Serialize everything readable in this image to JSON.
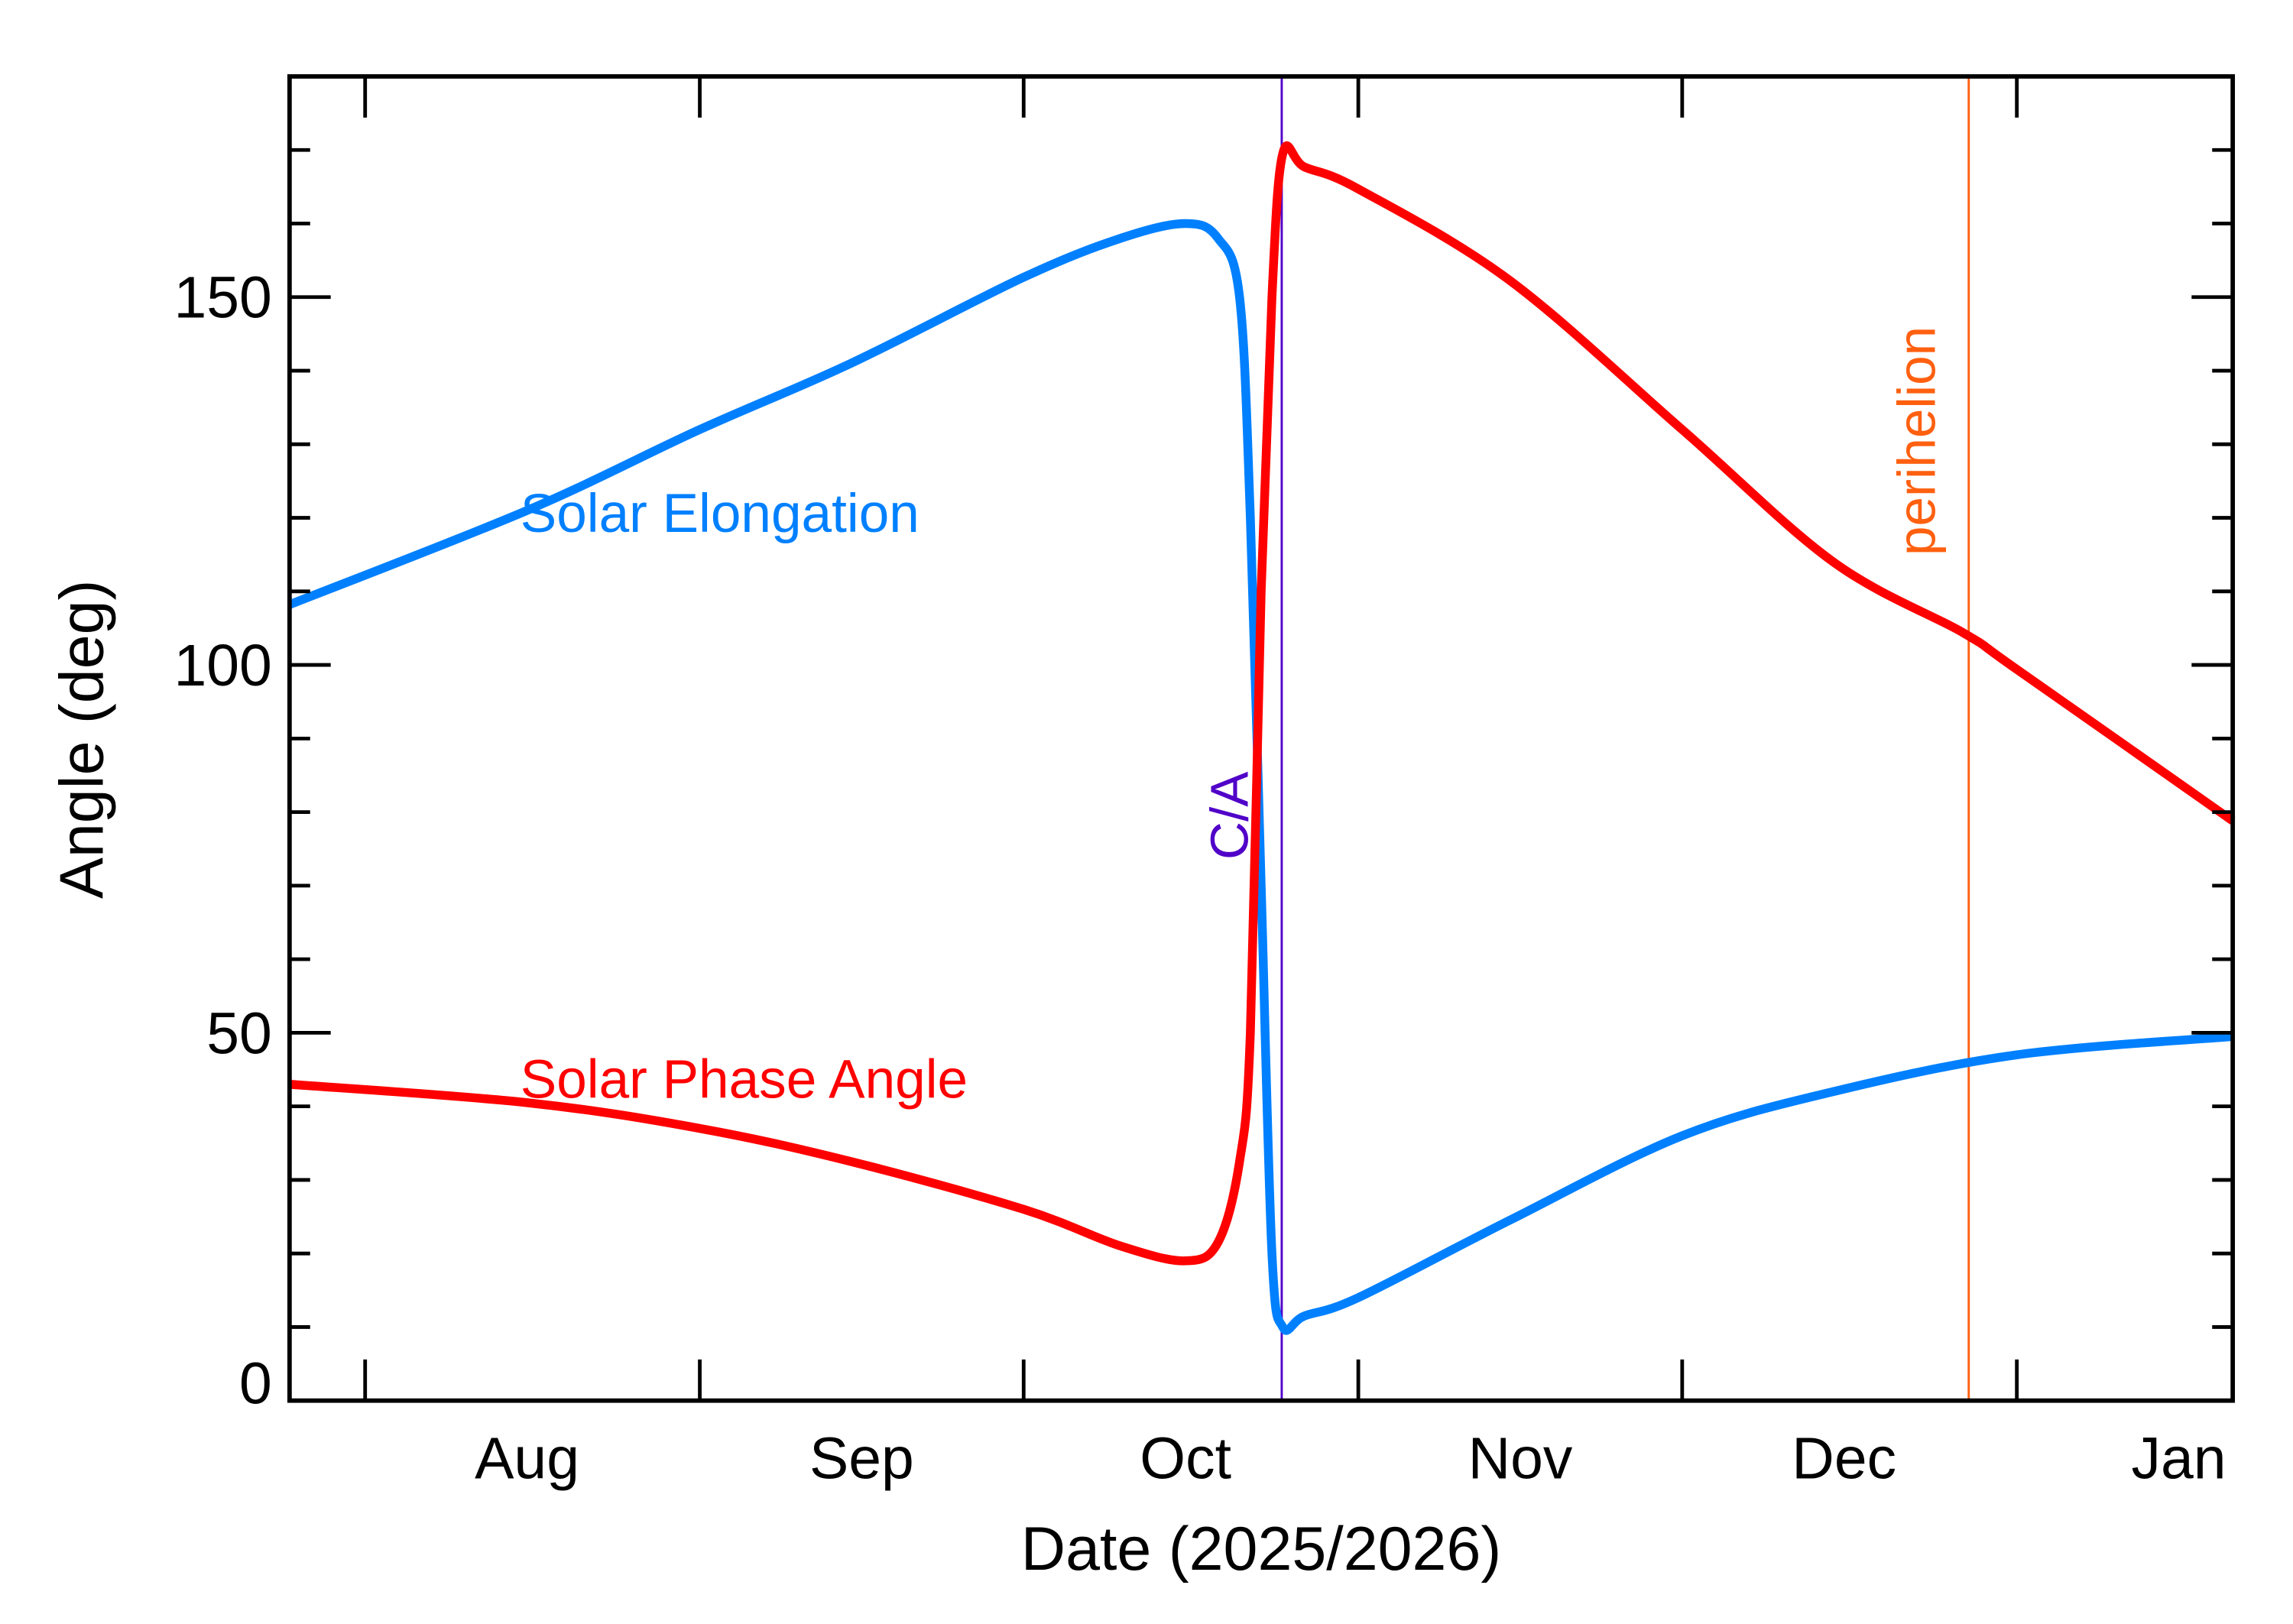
{
  "chart_data": {
    "type": "line",
    "title": "",
    "xlabel": "Date (2025/2026)",
    "ylabel": "Angle (deg)",
    "xlim": [
      "2025-07-25",
      "2026-01-21"
    ],
    "ylim": [
      0,
      180
    ],
    "yticks": [
      0,
      50,
      100,
      150
    ],
    "yminor_step": 10,
    "xticks": [
      {
        "date": "2025-08-01",
        "label": "Aug"
      },
      {
        "date": "2025-09-01",
        "label": "Sep"
      },
      {
        "date": "2025-10-01",
        "label": "Oct"
      },
      {
        "date": "2025-11-01",
        "label": "Nov"
      },
      {
        "date": "2025-12-01",
        "label": "Dec"
      },
      {
        "date": "2026-01-01",
        "label": "Jan"
      }
    ],
    "grid": false,
    "series": [
      {
        "name": "Solar Elongation",
        "color": "#0080ff",
        "x": [
          "2025-07-25",
          "2025-08-16",
          "2025-09-01",
          "2025-09-15",
          "2025-10-01",
          "2025-10-10",
          "2025-10-16",
          "2025-10-19",
          "2025-10-21",
          "2025-10-22",
          "2025-10-23",
          "2025-10-24",
          "2025-10-25",
          "2025-10-27",
          "2025-11-01",
          "2025-11-15",
          "2025-12-01",
          "2025-12-15",
          "2026-01-01",
          "2026-01-21"
        ],
        "y": [
          108.2,
          121,
          132,
          141,
          152.7,
          158,
          160,
          158,
          150,
          120,
          70,
          20,
          10,
          11.5,
          14,
          24.5,
          36,
          42,
          47,
          49.5
        ]
      },
      {
        "name": "Solar Phase Angle",
        "color": "#ff0000",
        "x": [
          "2025-07-25",
          "2025-08-16",
          "2025-09-01",
          "2025-09-15",
          "2025-10-01",
          "2025-10-10",
          "2025-10-16",
          "2025-10-19",
          "2025-10-21",
          "2025-10-22",
          "2025-10-23",
          "2025-10-24",
          "2025-10-25",
          "2025-10-27",
          "2025-11-01",
          "2025-11-15",
          "2025-12-01",
          "2025-12-15",
          "2025-12-27",
          "2026-01-01",
          "2026-01-21"
        ],
        "y": [
          43,
          40.5,
          37,
          32.5,
          26,
          21,
          19,
          21.5,
          32.5,
          50,
          110,
          150,
          169.5,
          167.7,
          164.7,
          152.3,
          132,
          114,
          104.4,
          99.4,
          78.8
        ]
      }
    ],
    "markers": [
      {
        "label": "C/A",
        "date": "2025-10-23",
        "color": "#5000c8"
      },
      {
        "label": "perihelion",
        "date": "2025-12-27",
        "color": "#ff6010"
      }
    ],
    "annotations": [
      {
        "text": "Solar Elongation",
        "color": "#0080ff",
        "date": "2025-08-16",
        "y": 120
      },
      {
        "text": "Solar Phase Angle",
        "color": "#ff0000",
        "date": "2025-08-16",
        "y": 43
      }
    ]
  }
}
